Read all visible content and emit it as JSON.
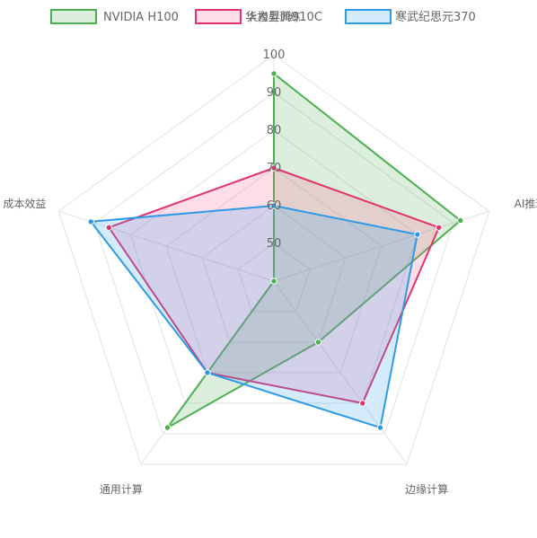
{
  "chart_data": {
    "type": "radar",
    "axes": [
      "大模型训练",
      "AI推理",
      "边缘计算",
      "通用计算",
      "成本效益"
    ],
    "r_ticks": [
      "50",
      "60",
      "70",
      "80",
      "90",
      "100"
    ],
    "r_range": [
      40,
      100
    ],
    "legend_position": "top",
    "series": [
      {
        "name": "NVIDIA H100",
        "values": [
          95,
          92,
          60,
          88,
          40
        ],
        "color": "#4caf50",
        "fill": "rgba(76,175,80,0.2)"
      },
      {
        "name": "华为昇腾910C",
        "values": [
          70,
          86,
          80,
          70,
          86
        ],
        "color": "#e0336f",
        "fill": "rgba(255,99,150,0.22)"
      },
      {
        "name": "寒武纪思元370",
        "values": [
          60,
          80,
          88,
          70,
          91
        ],
        "color": "#2f9ae5",
        "fill": "rgba(54,162,235,0.22)"
      }
    ]
  }
}
